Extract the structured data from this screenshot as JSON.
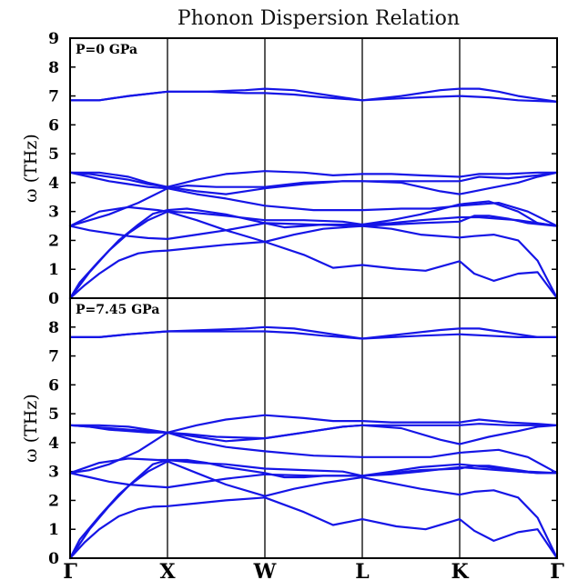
{
  "chart_data": {
    "type": "line",
    "title": "Phonon Dispersion Relation",
    "x_ticks": [
      "Γ",
      "X",
      "W",
      "L",
      "K",
      "Γ"
    ],
    "x_tick_positions": [
      0,
      1,
      2,
      3,
      4,
      5
    ],
    "grid": false,
    "line_color": "#1515e6",
    "panels": [
      {
        "label": "P=0 GPa",
        "ylabel": "ω (THz)",
        "ylim": [
          0,
          9
        ],
        "yticks": [
          0,
          1,
          2,
          3,
          4,
          5,
          6,
          7,
          8,
          9
        ],
        "series": [
          {
            "x": [
              0,
              0.15,
              0.3,
              0.5,
              0.7,
              0.85,
              1,
              1.3,
              1.6,
              2,
              2.4,
              2.7,
              3,
              3.35,
              3.65,
              4,
              4.15,
              4.35,
              4.6,
              4.8,
              5
            ],
            "y": [
              0,
              0.45,
              0.85,
              1.3,
              1.55,
              1.62,
              1.65,
              1.75,
              1.85,
              1.95,
              1.5,
              1.05,
              1.15,
              1.02,
              0.95,
              1.28,
              0.85,
              0.6,
              0.85,
              0.9,
              0
            ]
          },
          {
            "x": [
              0,
              0.2,
              0.4,
              0.6,
              0.8,
              1,
              1.3,
              1.6,
              2,
              2.3,
              2.6,
              3,
              3.3,
              3.6,
              4,
              4.15,
              4.35,
              4.6,
              4.8,
              5
            ],
            "y": [
              0,
              0.9,
              1.65,
              2.25,
              2.7,
              3.0,
              2.7,
              2.35,
              1.95,
              2.2,
              2.4,
              2.5,
              2.4,
              2.2,
              2.1,
              2.15,
              2.2,
              2.0,
              1.3,
              0
            ]
          },
          {
            "x": [
              0,
              0.1,
              0.3,
              0.5,
              0.7,
              0.85,
              1,
              1.2,
              1.4,
              1.6,
              2,
              2.2,
              2.4,
              2.6,
              2.8,
              3,
              3.3,
              3.6,
              4,
              4.2,
              4.4,
              4.6,
              4.8,
              5
            ],
            "y": [
              0,
              0.55,
              1.3,
              2.0,
              2.55,
              2.92,
              3.05,
              3.1,
              3.0,
              2.9,
              2.6,
              2.45,
              2.5,
              2.55,
              2.55,
              2.55,
              2.6,
              2.7,
              2.8,
              2.8,
              2.75,
              2.7,
              2.6,
              2.5
            ]
          },
          {
            "x": [
              0,
              0.2,
              0.4,
              0.6,
              0.8,
              1,
              1.3,
              1.6,
              2,
              2.5,
              3,
              3.3,
              3.6,
              4,
              4.15,
              4.3,
              4.5,
              4.7,
              5
            ],
            "y": [
              2.5,
              2.35,
              2.25,
              2.15,
              2.08,
              2.05,
              2.2,
              2.35,
              2.6,
              2.55,
              2.5,
              2.55,
              2.6,
              2.65,
              2.85,
              2.85,
              2.75,
              2.6,
              2.5
            ]
          },
          {
            "x": [
              0,
              0.3,
              0.6,
              0.9,
              1,
              1.3,
              1.6,
              2,
              2.4,
              2.8,
              3,
              3.3,
              3.6,
              4,
              4.3,
              4.6,
              4.8,
              5
            ],
            "y": [
              2.5,
              3.0,
              3.15,
              3.05,
              3.0,
              2.95,
              2.85,
              2.7,
              2.7,
              2.65,
              2.55,
              2.7,
              2.9,
              3.25,
              3.35,
              3.0,
              2.6,
              2.5
            ]
          },
          {
            "x": [
              0,
              0.2,
              0.4,
              0.7,
              1,
              1.3,
              1.6,
              2,
              2.5,
              3,
              3.4,
              3.7,
              4,
              4.4,
              4.7,
              5
            ],
            "y": [
              2.5,
              2.7,
              2.9,
              3.3,
              3.8,
              3.6,
              3.45,
              3.2,
              3.05,
              3.05,
              3.1,
              3.1,
              3.2,
              3.3,
              3.0,
              2.5
            ]
          },
          {
            "x": [
              0,
              0.2,
              0.4,
              0.6,
              0.8,
              1,
              1.3,
              1.6,
              2,
              2.4,
              2.8,
              3,
              3.4,
              3.8,
              4,
              4.3,
              4.6,
              4.8,
              5
            ],
            "y": [
              4.35,
              4.3,
              4.2,
              4.1,
              3.95,
              3.85,
              3.7,
              3.6,
              3.8,
              3.95,
              4.05,
              4.05,
              4.0,
              3.7,
              3.6,
              3.8,
              4.0,
              4.2,
              4.35
            ]
          },
          {
            "x": [
              0,
              0.2,
              0.4,
              0.6,
              0.8,
              1,
              1.2,
              1.5,
              2,
              2.4,
              2.8,
              3,
              3.4,
              3.8,
              4,
              4.2,
              4.5,
              4.8,
              5
            ],
            "y": [
              4.35,
              4.2,
              4.05,
              3.95,
              3.85,
              3.8,
              3.9,
              3.85,
              3.85,
              4.0,
              4.05,
              4.05,
              4.05,
              4.05,
              4.05,
              4.2,
              4.15,
              4.25,
              4.35
            ]
          },
          {
            "x": [
              0,
              0.3,
              0.6,
              0.8,
              1,
              1.3,
              1.6,
              2,
              2.4,
              2.7,
              3,
              3.3,
              3.6,
              4,
              4.2,
              4.5,
              4.8,
              5
            ],
            "y": [
              4.35,
              4.35,
              4.2,
              4.0,
              3.85,
              4.1,
              4.3,
              4.4,
              4.35,
              4.25,
              4.3,
              4.3,
              4.25,
              4.2,
              4.3,
              4.3,
              4.35,
              4.35
            ]
          },
          {
            "x": [
              0,
              0.3,
              0.6,
              1,
              1.4,
              1.8,
              2,
              2.3,
              2.6,
              3,
              3.3,
              3.6,
              4,
              4.3,
              4.6,
              5
            ],
            "y": [
              6.85,
              6.85,
              7.0,
              7.15,
              7.15,
              7.1,
              7.1,
              7.05,
              6.95,
              6.85,
              6.9,
              6.95,
              7.0,
              6.95,
              6.85,
              6.8
            ]
          },
          {
            "x": [
              0,
              0.3,
              0.6,
              1,
              1.4,
              1.8,
              2,
              2.3,
              2.6,
              3,
              3.4,
              3.8,
              4,
              4.2,
              4.4,
              4.6,
              4.8,
              5
            ],
            "y": [
              6.85,
              6.85,
              7.0,
              7.15,
              7.15,
              7.2,
              7.25,
              7.2,
              7.05,
              6.85,
              7.0,
              7.2,
              7.25,
              7.25,
              7.15,
              7.0,
              6.9,
              6.8
            ]
          }
        ]
      },
      {
        "label": "P=7.45 GPa",
        "ylabel": "ω (THz)",
        "ylim": [
          0,
          9
        ],
        "yticks": [
          0,
          1,
          2,
          3,
          4,
          5,
          6,
          7,
          8,
          9
        ],
        "series": [
          {
            "x": [
              0,
              0.15,
              0.3,
              0.5,
              0.7,
              0.85,
              1,
              1.3,
              1.6,
              2,
              2.4,
              2.7,
              3,
              3.35,
              3.65,
              4,
              4.15,
              4.35,
              4.6,
              4.8,
              5
            ],
            "y": [
              0,
              0.55,
              1.0,
              1.45,
              1.7,
              1.78,
              1.8,
              1.9,
              2.0,
              2.1,
              1.6,
              1.15,
              1.35,
              1.1,
              1.0,
              1.35,
              0.95,
              0.6,
              0.9,
              1.0,
              0
            ]
          },
          {
            "x": [
              0,
              0.2,
              0.4,
              0.6,
              0.8,
              1,
              1.3,
              1.6,
              2,
              2.3,
              2.6,
              3,
              3.3,
              3.6,
              4,
              4.15,
              4.35,
              4.6,
              4.8,
              5
            ],
            "y": [
              0,
              1.0,
              1.8,
              2.5,
              3.0,
              3.35,
              2.95,
              2.55,
              2.15,
              2.4,
              2.6,
              2.8,
              2.6,
              2.4,
              2.2,
              2.3,
              2.35,
              2.1,
              1.4,
              0
            ]
          },
          {
            "x": [
              0,
              0.1,
              0.3,
              0.5,
              0.7,
              0.85,
              1,
              1.2,
              1.4,
              1.6,
              2,
              2.2,
              2.4,
              2.6,
              2.8,
              3,
              3.3,
              3.6,
              4,
              4.2,
              4.4,
              4.6,
              4.8,
              5
            ],
            "y": [
              0,
              0.65,
              1.45,
              2.2,
              2.8,
              3.25,
              3.4,
              3.4,
              3.3,
              3.15,
              2.95,
              2.8,
              2.8,
              2.85,
              2.85,
              2.85,
              2.9,
              3.0,
              3.15,
              3.1,
              3.05,
              3.0,
              2.95,
              2.95
            ]
          },
          {
            "x": [
              0,
              0.2,
              0.4,
              0.6,
              0.8,
              1,
              1.3,
              1.6,
              2,
              2.5,
              3,
              3.3,
              3.6,
              4,
              4.15,
              4.3,
              4.5,
              4.7,
              5
            ],
            "y": [
              2.95,
              2.8,
              2.65,
              2.55,
              2.5,
              2.45,
              2.6,
              2.75,
              2.9,
              2.85,
              2.85,
              2.95,
              3.05,
              3.1,
              3.2,
              3.2,
              3.1,
              3.0,
              2.95
            ]
          },
          {
            "x": [
              0,
              0.3,
              0.6,
              0.9,
              1,
              1.3,
              1.6,
              2,
              2.4,
              2.8,
              3,
              3.3,
              3.6,
              4,
              4.3,
              4.6,
              4.8,
              5
            ],
            "y": [
              2.95,
              3.3,
              3.45,
              3.4,
              3.4,
              3.3,
              3.25,
              3.1,
              3.05,
              3.0,
              2.85,
              3.0,
              3.15,
              3.25,
              3.15,
              3.0,
              2.95,
              2.95
            ]
          },
          {
            "x": [
              0,
              0.2,
              0.4,
              0.7,
              1,
              1.3,
              1.6,
              2,
              2.5,
              3,
              3.4,
              3.7,
              4,
              4.4,
              4.7,
              5
            ],
            "y": [
              2.95,
              3.05,
              3.25,
              3.7,
              4.35,
              4.05,
              3.85,
              3.7,
              3.55,
              3.5,
              3.5,
              3.5,
              3.65,
              3.75,
              3.5,
              2.95
            ]
          },
          {
            "x": [
              0,
              0.2,
              0.4,
              0.6,
              0.8,
              1,
              1.3,
              1.6,
              2,
              2.4,
              2.8,
              3,
              3.4,
              3.8,
              4,
              4.3,
              4.6,
              4.8,
              5
            ],
            "y": [
              4.6,
              4.55,
              4.5,
              4.45,
              4.4,
              4.35,
              4.2,
              4.05,
              4.15,
              4.35,
              4.55,
              4.6,
              4.5,
              4.1,
              3.95,
              4.2,
              4.4,
              4.55,
              4.6
            ]
          },
          {
            "x": [
              0,
              0.2,
              0.4,
              0.6,
              0.8,
              1,
              1.2,
              1.5,
              2,
              2.4,
              2.8,
              3,
              3.4,
              3.8,
              4,
              4.2,
              4.5,
              4.8,
              5
            ],
            "y": [
              4.6,
              4.55,
              4.45,
              4.4,
              4.35,
              4.35,
              4.3,
              4.2,
              4.15,
              4.35,
              4.55,
              4.6,
              4.6,
              4.6,
              4.6,
              4.65,
              4.6,
              4.6,
              4.6
            ]
          },
          {
            "x": [
              0,
              0.3,
              0.6,
              0.8,
              1,
              1.3,
              1.6,
              2,
              2.4,
              2.7,
              3,
              3.3,
              3.6,
              4,
              4.2,
              4.5,
              4.8,
              5
            ],
            "y": [
              4.6,
              4.6,
              4.55,
              4.45,
              4.35,
              4.6,
              4.8,
              4.95,
              4.85,
              4.75,
              4.75,
              4.7,
              4.7,
              4.7,
              4.8,
              4.7,
              4.65,
              4.6
            ]
          },
          {
            "x": [
              0,
              0.3,
              0.6,
              1,
              1.4,
              1.8,
              2,
              2.3,
              2.6,
              3,
              3.3,
              3.6,
              4,
              4.3,
              4.6,
              5
            ],
            "y": [
              7.65,
              7.65,
              7.75,
              7.85,
              7.85,
              7.85,
              7.85,
              7.8,
              7.7,
              7.6,
              7.65,
              7.7,
              7.75,
              7.7,
              7.65,
              7.65
            ]
          },
          {
            "x": [
              0,
              0.3,
              0.6,
              1,
              1.4,
              1.8,
              2,
              2.3,
              2.6,
              3,
              3.4,
              3.8,
              4,
              4.2,
              4.4,
              4.6,
              4.8,
              5
            ],
            "y": [
              7.65,
              7.65,
              7.75,
              7.85,
              7.9,
              7.95,
              8.0,
              7.95,
              7.8,
              7.6,
              7.75,
              7.9,
              7.95,
              7.95,
              7.85,
              7.75,
              7.65,
              7.65
            ]
          }
        ]
      }
    ]
  }
}
